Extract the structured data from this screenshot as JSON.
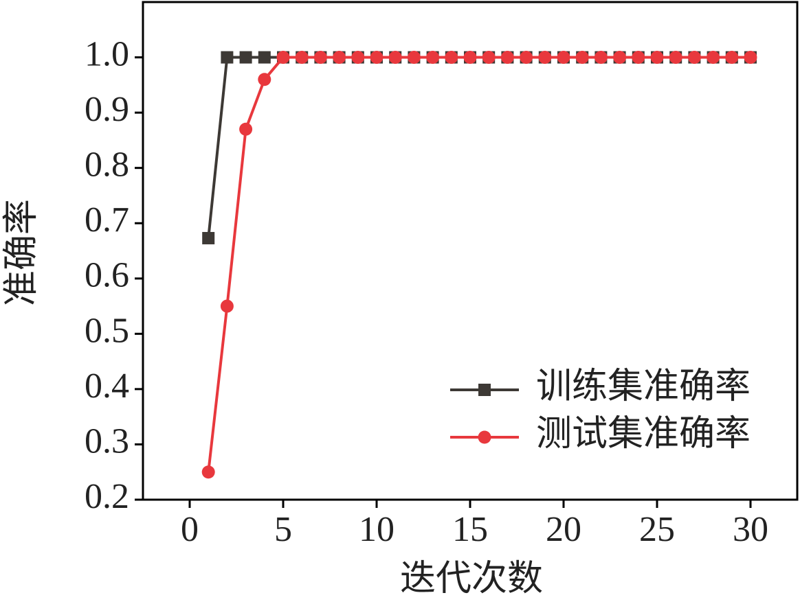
{
  "chart_data": {
    "type": "line",
    "x_label": "迭代次数",
    "y_label": "准确率",
    "x": [
      1,
      2,
      3,
      4,
      5,
      6,
      7,
      8,
      9,
      10,
      11,
      12,
      13,
      14,
      15,
      16,
      17,
      18,
      19,
      20,
      21,
      22,
      23,
      24,
      25,
      26,
      27,
      28,
      29,
      30
    ],
    "series": [
      {
        "name": "训练集准确率",
        "color": "#3d3935",
        "marker": "square",
        "values": [
          0.673,
          1.0,
          1.0,
          1.0,
          1.0,
          1.0,
          1.0,
          1.0,
          1.0,
          1.0,
          1.0,
          1.0,
          1.0,
          1.0,
          1.0,
          1.0,
          1.0,
          1.0,
          1.0,
          1.0,
          1.0,
          1.0,
          1.0,
          1.0,
          1.0,
          1.0,
          1.0,
          1.0,
          1.0,
          1.0
        ]
      },
      {
        "name": "测试集准确率",
        "color": "#e8383d",
        "marker": "circle",
        "values": [
          0.25,
          0.55,
          0.87,
          0.96,
          1.0,
          1.0,
          1.0,
          1.0,
          1.0,
          1.0,
          1.0,
          1.0,
          1.0,
          1.0,
          1.0,
          1.0,
          1.0,
          1.0,
          1.0,
          1.0,
          1.0,
          1.0,
          1.0,
          1.0,
          1.0,
          1.0,
          1.0,
          1.0,
          1.0,
          1.0
        ]
      }
    ],
    "xlim": [
      -2.5,
      32.5
    ],
    "xticks": [
      0,
      5,
      10,
      15,
      20,
      25,
      30
    ],
    "ylim": [
      0.2,
      1.1
    ],
    "yticks": [
      0.2,
      0.3,
      0.4,
      0.5,
      0.6,
      0.7,
      0.8,
      0.9,
      {
        "value": 1,
        "label": "1.0"
      }
    ],
    "grid": false,
    "legend": "lower right"
  }
}
